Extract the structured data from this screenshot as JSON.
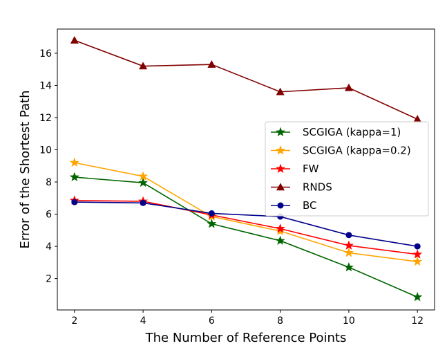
{
  "chart_data": {
    "type": "line",
    "title": "",
    "xlabel": "The Number of Reference Points",
    "ylabel": "Error of the Shortest Path",
    "x": [
      2,
      4,
      6,
      8,
      10,
      12
    ],
    "xlim": [
      1.5,
      12.5
    ],
    "ylim": [
      0.05,
      17.5
    ],
    "xticks": [
      2,
      4,
      6,
      8,
      10,
      12
    ],
    "yticks": [
      2,
      4,
      6,
      8,
      10,
      12,
      14,
      16
    ],
    "grid": false,
    "legend_position": "center-right",
    "series": [
      {
        "name": "SCGIGA (kappa=1)",
        "values": [
          8.3,
          7.95,
          5.4,
          4.35,
          2.7,
          0.85
        ],
        "color": "#006400",
        "marker": "star"
      },
      {
        "name": "SCGIGA (kappa=0.2)",
        "values": [
          9.2,
          8.35,
          5.85,
          4.95,
          3.6,
          3.05
        ],
        "color": "#ffa500",
        "marker": "star"
      },
      {
        "name": "FW",
        "values": [
          6.85,
          6.8,
          5.95,
          5.1,
          4.05,
          3.5
        ],
        "color": "#ff0000",
        "marker": "star"
      },
      {
        "name": "RNDS",
        "values": [
          16.8,
          15.2,
          15.3,
          13.6,
          13.85,
          11.9
        ],
        "color": "#800000",
        "marker": "triangle"
      },
      {
        "name": "BC",
        "values": [
          6.75,
          6.7,
          6.05,
          5.85,
          4.7,
          4.0
        ],
        "color": "#00008b",
        "marker": "circle"
      }
    ]
  }
}
